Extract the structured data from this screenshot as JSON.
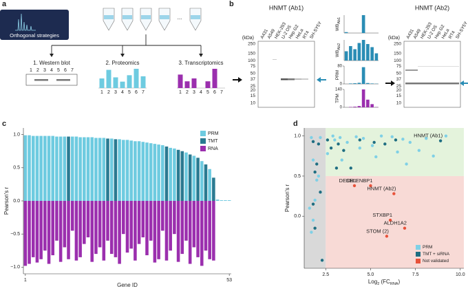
{
  "panel_a": {
    "label": "a",
    "title": "Orthogonal strategies",
    "ellipsis": "...",
    "methods": [
      {
        "title": "1. Western blot",
        "lanes": [
          "1",
          "2",
          "3",
          "4",
          "5",
          "6",
          "7"
        ]
      },
      {
        "title": "2. Proteomics",
        "lanes": [
          "1",
          "2",
          "3",
          "4",
          "5",
          "6",
          "7"
        ],
        "color": "#6ecbe0",
        "values": [
          0.45,
          0.85,
          0.5,
          0.3,
          0.6,
          0.9,
          0.55
        ]
      },
      {
        "title": "3. Transcriptomics",
        "lanes": [
          "1",
          "2",
          "3",
          "4",
          "5",
          "6",
          "7"
        ],
        "color": "#9b2fae",
        "values": [
          0.7,
          0.35,
          0.5,
          null,
          0.35,
          1.0,
          null
        ]
      }
    ]
  },
  "panel_b": {
    "label": "b",
    "blots": [
      {
        "title": "HNMT (Ab1)",
        "unit": "(kDa)",
        "markers": [
          250,
          150,
          100,
          75,
          50,
          37,
          25,
          20,
          15,
          10
        ],
        "cell_lines": [
          "A431",
          "A549",
          "HEK-293",
          "U-2 OS",
          "Hep G2",
          "HeLa",
          "RT4",
          "SH-SY5Y"
        ]
      },
      {
        "title": "HNMT (Ab2)",
        "unit": "(kDa)",
        "markers": [
          250,
          150,
          100,
          75,
          50,
          37,
          25,
          20,
          15,
          10
        ],
        "cell_lines": [
          "A431",
          "A549",
          "HEK-293",
          "U-2 OS",
          "Hep G2",
          "HeLa",
          "RT4",
          "SH-SY5Y"
        ]
      }
    ],
    "bar_charts": [
      {
        "label_parts": [
          "WB",
          "Ab1"
        ],
        "color": "#2a8db5",
        "values": [
          0.05,
          0,
          0,
          0,
          1.0,
          0,
          0,
          0
        ]
      },
      {
        "label_parts": [
          "WB",
          "Ab2"
        ],
        "color": "#2a8db5",
        "values": [
          0.45,
          0.7,
          0.55,
          0.85,
          1.0,
          0.8,
          0.65,
          0.35
        ]
      },
      {
        "label_parts": [
          "PRM"
        ],
        "color": "#2a8db5",
        "yticks": [
          0,
          80
        ],
        "values": [
          0,
          2,
          3,
          5,
          75,
          4,
          2,
          1
        ]
      },
      {
        "label_parts": [
          "TPM"
        ],
        "color": "#9b2fae",
        "yticks": [
          0,
          140
        ],
        "values": [
          0,
          3,
          5,
          10,
          140,
          60,
          25,
          2
        ]
      }
    ]
  },
  "chart_data": [
    {
      "type": "bar",
      "label": "c",
      "y_label": "Pearson's r",
      "x_label": "Gene ID",
      "legend": "top-right",
      "categories": [
        "1",
        null,
        null,
        null,
        null,
        null,
        null,
        null,
        null,
        null,
        null,
        null,
        null,
        null,
        null,
        null,
        null,
        null,
        null,
        null,
        null,
        null,
        null,
        null,
        null,
        null,
        null,
        null,
        null,
        null,
        null,
        null,
        null,
        null,
        null,
        null,
        null,
        null,
        null,
        null,
        null,
        null,
        null,
        null,
        null,
        null,
        null,
        null,
        null,
        null,
        null,
        null,
        "53"
      ],
      "ylim": [
        -1.1,
        1.1
      ],
      "yticks": [
        {
          "value": -1,
          "label": "−1.0"
        },
        {
          "value": -0.5,
          "label": "−0.5"
        },
        {
          "value": 0,
          "label": "0.0"
        },
        0.5,
        {
          "value": 1,
          "label": "1.0"
        }
      ],
      "series": [
        {
          "name": "PRM",
          "color": "#6ecbe0",
          "values": [
            0.99,
            0.99,
            0.98,
            0.98,
            0.98,
            0.98,
            0.98,
            0.98,
            0.97,
            0.97,
            0.97,
            null,
            0.97,
            0.97,
            0.96,
            0.96,
            0.96,
            0.96,
            0.95,
            0.95,
            0.95,
            null,
            0.94,
            null,
            0.93,
            0.92,
            0.92,
            0.91,
            0.9,
            0.9,
            0.89,
            0.88,
            0.87,
            0.86,
            0.85,
            0.84,
            null,
            0.8,
            0.79,
            null,
            null,
            0.73,
            null,
            0.68,
            null,
            0.6,
            null,
            0.48,
            null,
            0.02,
            0.01,
            0.01,
            0.01
          ]
        },
        {
          "name": "TMT",
          "color": "#2a7a91",
          "values": [
            null,
            null,
            null,
            null,
            null,
            null,
            null,
            null,
            null,
            null,
            null,
            0.97,
            null,
            null,
            null,
            null,
            null,
            null,
            null,
            null,
            null,
            0.94,
            null,
            0.93,
            null,
            null,
            null,
            null,
            null,
            null,
            null,
            null,
            null,
            null,
            null,
            null,
            0.82,
            null,
            null,
            0.77,
            0.75,
            null,
            0.7,
            null,
            0.65,
            null,
            0.55,
            null,
            0.35,
            null,
            null,
            null,
            null
          ]
        },
        {
          "name": "RNA",
          "color": "#9b2fae",
          "values": [
            -0.98,
            -0.95,
            -0.85,
            -0.93,
            -0.88,
            -0.75,
            -0.95,
            -0.82,
            -0.6,
            -0.92,
            -0.7,
            -0.88,
            -0.45,
            -0.9,
            -0.85,
            -0.65,
            -0.55,
            -0.92,
            -0.8,
            -0.7,
            -0.9,
            -0.6,
            -0.8,
            -0.85,
            -0.95,
            -0.5,
            -0.78,
            -0.72,
            -0.9,
            -0.65,
            -0.55,
            -0.82,
            -0.6,
            -0.93,
            -0.88,
            -0.45,
            -0.9,
            -0.75,
            -0.5,
            -0.92,
            -0.8,
            -0.6,
            -0.95,
            -0.7,
            -0.85,
            -0.98,
            -0.75,
            -0.88,
            -0.9,
            null,
            null,
            null,
            null
          ]
        }
      ]
    },
    {
      "type": "scatter",
      "label": "d",
      "y_label": "Pearson's r",
      "x_label_parts": [
        "Log",
        "2",
        " (FC",
        "RNA",
        ")"
      ],
      "legend": "bottom-right",
      "xlim": [
        1.3,
        10.2
      ],
      "ylim": [
        -0.65,
        1.1
      ],
      "xticks": [
        2.5,
        {
          "value": 5,
          "label": "5.0"
        },
        7.5,
        {
          "value": 10,
          "label": "10.0"
        }
      ],
      "yticks": [
        {
          "value": 0,
          "label": "0.0"
        },
        0.5,
        {
          "value": 1,
          "label": "1.0"
        }
      ],
      "series": [
        {
          "name": "PRM",
          "color": "#7fd0e6",
          "x": [
            1.7,
            2.2,
            2.9,
            3.3,
            3.7,
            4.2,
            4.6,
            5.1,
            5.6,
            6.2,
            6.8,
            7.2,
            7.7,
            8.1,
            9.2,
            1.8,
            2.0,
            1.9,
            1.6,
            1.8,
            1.7,
            2.6,
            3.4,
            4.4,
            5.3,
            6.5,
            7.0,
            8.5,
            3.0,
            2.1
          ],
          "values": [
            0.98,
            0.98,
            1.0,
            0.98,
            0.92,
            0.99,
            0.97,
            0.88,
            1.0,
            0.99,
            0.96,
            0.92,
            0.82,
            0.97,
            1.0,
            0.7,
            0.45,
            0.2,
            0.1,
            -0.05,
            -0.2,
            0.78,
            0.7,
            0.85,
            0.74,
            0.8,
            0.65,
            0.75,
            0.95,
            0.5
          ]
        },
        {
          "name": "TMT + siRNA",
          "color": "#1f6e82",
          "x": [
            1.8,
            2.1,
            2.6,
            2.8,
            3.1,
            3.2,
            3.5,
            3.9,
            4.4,
            5.2,
            5.8,
            6.4,
            2.0,
            1.9,
            2.2,
            1.9,
            2.3,
            1.8,
            8.9
          ],
          "values": [
            0.93,
            0.9,
            0.95,
            0.85,
            0.6,
            0.9,
            0.82,
            0.6,
            0.95,
            0.92,
            0.9,
            0.95,
            0.65,
            0.55,
            0.3,
            -0.15,
            -0.55,
            0.15,
            0.94
          ],
          "labels": [
            null,
            null,
            null,
            null,
            null,
            null,
            null,
            null,
            null,
            null,
            null,
            null,
            null,
            null,
            null,
            null,
            null,
            null,
            "HNMT (Ab1)"
          ]
        },
        {
          "name": "Not validated",
          "color": "#e8523a",
          "x": [
            4.1,
            5.0,
            6.3,
            6.1,
            6.9,
            5.9
          ],
          "values": [
            0.38,
            0.38,
            0.28,
            -0.05,
            -0.15,
            -0.25
          ],
          "labels": [
            "DECR1",
            "SELENBP1",
            "HNMT (Ab2)",
            "STXBP1",
            "ALDH1A2",
            "STOM (2)"
          ]
        }
      ],
      "regions": {
        "low_fc": "#d9d9d9",
        "validated": "#e4f3dc",
        "not_validated": "#f8dad6"
      }
    }
  ]
}
